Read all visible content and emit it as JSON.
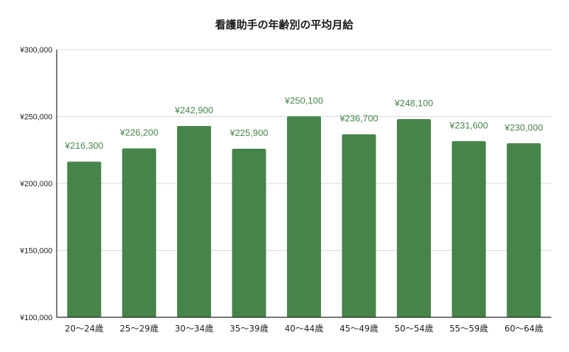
{
  "chart_data": {
    "type": "bar",
    "title": "看護助手の年齢別の平均月給",
    "xlabel": "",
    "ylabel": "",
    "categories": [
      "20〜24歳",
      "25〜29歳",
      "30〜34歳",
      "35〜39歳",
      "40〜44歳",
      "45〜49歳",
      "50〜54歳",
      "55〜59歳",
      "60〜64歳"
    ],
    "values": [
      216300,
      226200,
      242900,
      225900,
      250100,
      236700,
      248100,
      231600,
      230000
    ],
    "value_labels": [
      "¥216,300",
      "¥226,200",
      "¥242,900",
      "¥225,900",
      "¥250,100",
      "¥236,700",
      "¥248,100",
      "¥231,600",
      "¥230,000"
    ],
    "ylim": [
      100000,
      300000
    ],
    "yticks": [
      100000,
      150000,
      200000,
      250000,
      300000
    ],
    "ytick_labels": [
      "¥100,000",
      "¥150,000",
      "¥200,000",
      "¥250,000",
      "¥300,000"
    ],
    "grid": true,
    "legend": "none",
    "colors": {
      "bar": "#47844a",
      "label": "#47844a",
      "grid": "#d9d9d9",
      "axis": "#222222"
    }
  }
}
